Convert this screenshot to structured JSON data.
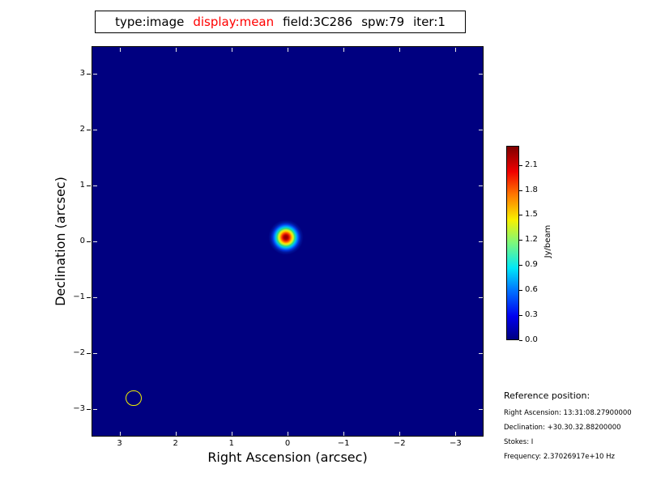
{
  "header": {
    "segments": [
      {
        "text": "type:image",
        "color": "#000000"
      },
      {
        "text": "display:mean",
        "color": "#ff0000"
      },
      {
        "text": "field:3C286",
        "color": "#000000"
      },
      {
        "text": "spw:79",
        "color": "#000000"
      },
      {
        "text": "iter:1",
        "color": "#000000"
      }
    ]
  },
  "chart_data": {
    "type": "heatmap",
    "title": "type:image  display:mean  field:3C286  spw:79  iter:1",
    "xlabel": "Right Ascension (arcsec)",
    "ylabel": "Declination (arcsec)",
    "xlim": [
      3.5,
      -3.5
    ],
    "ylim": [
      -3.5,
      3.5
    ],
    "x_ticks": [
      3,
      2,
      1,
      0,
      -1,
      -2,
      -3
    ],
    "y_ticks": [
      3,
      2,
      1,
      0,
      -1,
      -2,
      -3
    ],
    "colormap": "jet",
    "background_value_jy_per_beam": 0.0,
    "source": {
      "shape": "gaussian-point-source",
      "x_arcsec": 0.04,
      "y_arcsec": 0.09,
      "peak_jy_per_beam": 2.3
    },
    "beam_marker": {
      "x_arcsec": 2.76,
      "y_arcsec": -2.8,
      "radius_arcsec": 0.14,
      "color": "#f0f000"
    },
    "colorbar": {
      "label": "Jy/beam",
      "ticks": [
        0.0,
        0.3,
        0.6,
        0.9,
        1.2,
        1.5,
        1.8,
        2.1
      ],
      "min": 0.0,
      "max": 2.33,
      "position": "right"
    },
    "grid": false,
    "legend": false
  },
  "reference": {
    "title": "Reference position:",
    "lines": [
      "Right Ascension: 13:31:08.27900000",
      "Declination: +30.30.32.88200000",
      "Stokes: I",
      "Frequency: 2.37026917e+10 Hz"
    ]
  },
  "colors": {
    "image_background": "#000080",
    "title_highlight": "#ff0000",
    "beam_marker": "#f0f000",
    "inside_tick": "#e8e8e8",
    "axis_line": "#000000"
  }
}
